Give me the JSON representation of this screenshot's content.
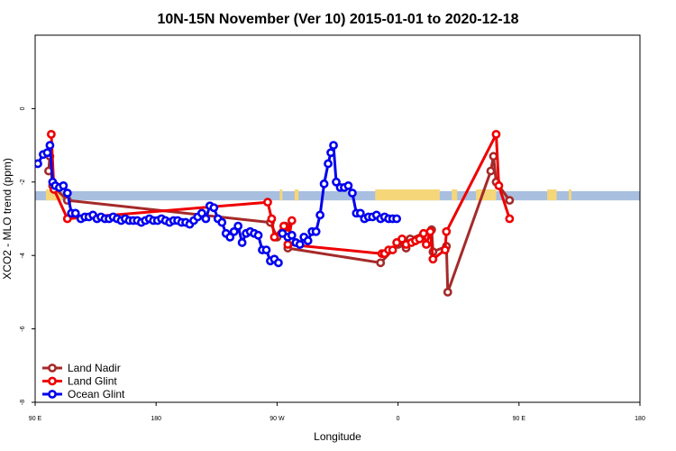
{
  "chart_data": {
    "type": "line",
    "title": "10N-15N November (Ver 10)   2015-01-01 to 2020-12-18",
    "xlabel": "Longitude",
    "ylabel": "XCO2 - MLO trend (ppm)",
    "xlim": [
      90,
      450
    ],
    "ylim": [
      -8,
      2
    ],
    "x_ticks": [
      {
        "value": 90,
        "label": "90 E"
      },
      {
        "value": 180,
        "label": "180"
      },
      {
        "value": 270,
        "label": "90 W"
      },
      {
        "value": 360,
        "label": "0"
      },
      {
        "value": 450,
        "label": "90 E"
      },
      {
        "value": 540,
        "label": "180"
      }
    ],
    "y_ticks": [
      {
        "value": 0,
        "label": "0"
      },
      {
        "value": -2,
        "label": "-2"
      },
      {
        "value": -4,
        "label": "-4"
      },
      {
        "value": -6,
        "label": "-6"
      },
      {
        "value": -8,
        "label": "-8"
      }
    ],
    "legend_position": "bottom-left",
    "land_strip": {
      "y_range": [
        -2.5,
        -2.25
      ],
      "ocean_color": "#a8bfe0",
      "land_color": "#f5d77a",
      "land_segments": [
        [
          98,
          110
        ],
        [
          272,
          274
        ],
        [
          283,
          286
        ],
        [
          343,
          391
        ],
        [
          400,
          404
        ],
        [
          418,
          433
        ],
        [
          471,
          478
        ],
        [
          487,
          489
        ]
      ]
    },
    "series": [
      {
        "name": "Land Nadir",
        "color": "#a52a2a",
        "points": [
          [
            100,
            -1.7
          ],
          [
            101,
            -1.3
          ],
          [
            103,
            -2.1
          ],
          [
            114,
            -2.5
          ],
          [
            265,
            -3.1
          ],
          [
            270,
            -3.5
          ],
          [
            276,
            -3.2
          ],
          [
            278,
            -3.8
          ],
          [
            347,
            -4.2
          ],
          [
            360,
            -3.7
          ],
          [
            366,
            -3.8
          ],
          [
            369,
            -3.55
          ],
          [
            385,
            -3.3
          ],
          [
            386,
            -3.9
          ],
          [
            396,
            -3.75
          ],
          [
            397,
            -5.0
          ],
          [
            429,
            -1.7
          ],
          [
            431,
            -1.3
          ],
          [
            433,
            -2.0
          ],
          [
            443,
            -2.5
          ]
        ]
      },
      {
        "name": "Land Glint",
        "color": "#ee0000",
        "points": [
          [
            102,
            -0.7
          ],
          [
            104,
            -2.2
          ],
          [
            114,
            -3.0
          ],
          [
            263,
            -2.55
          ],
          [
            266,
            -3.0
          ],
          [
            268,
            -3.5
          ],
          [
            275,
            -3.2
          ],
          [
            277,
            -3.4
          ],
          [
            281,
            -3.05
          ],
          [
            278,
            -3.7
          ],
          [
            348,
            -3.95
          ],
          [
            350,
            -3.95
          ],
          [
            353,
            -3.85
          ],
          [
            356,
            -3.85
          ],
          [
            359,
            -3.65
          ],
          [
            363,
            -3.55
          ],
          [
            366,
            -3.7
          ],
          [
            370,
            -3.65
          ],
          [
            373,
            -3.6
          ],
          [
            376,
            -3.55
          ],
          [
            379,
            -3.4
          ],
          [
            381,
            -3.7
          ],
          [
            384,
            -3.35
          ],
          [
            386,
            -4.1
          ],
          [
            395,
            -3.85
          ],
          [
            396,
            -3.35
          ],
          [
            433,
            -0.7
          ],
          [
            435,
            -2.1
          ],
          [
            443,
            -3.0
          ]
        ]
      },
      {
        "name": "Ocean Glint",
        "color": "#0000ee",
        "points": [
          [
            92,
            -1.5
          ],
          [
            96,
            -1.25
          ],
          [
            99,
            -1.2
          ],
          [
            101,
            -1.0
          ],
          [
            103,
            -2.0
          ],
          [
            105,
            -2.1
          ],
          [
            108,
            -2.15
          ],
          [
            111,
            -2.1
          ],
          [
            114,
            -2.3
          ],
          [
            117,
            -2.85
          ],
          [
            120,
            -2.85
          ],
          [
            124,
            -3.0
          ],
          [
            127,
            -2.95
          ],
          [
            130,
            -2.95
          ],
          [
            133,
            -2.9
          ],
          [
            136,
            -3.0
          ],
          [
            139,
            -2.95
          ],
          [
            142,
            -3.0
          ],
          [
            145,
            -3.0
          ],
          [
            148,
            -2.95
          ],
          [
            151,
            -3.0
          ],
          [
            154,
            -3.05
          ],
          [
            157,
            -3.0
          ],
          [
            160,
            -3.05
          ],
          [
            163,
            -3.05
          ],
          [
            166,
            -3.05
          ],
          [
            169,
            -3.1
          ],
          [
            172,
            -3.05
          ],
          [
            175,
            -3.0
          ],
          [
            178,
            -3.05
          ],
          [
            181,
            -3.05
          ],
          [
            184,
            -3.0
          ],
          [
            187,
            -3.05
          ],
          [
            190,
            -3.1
          ],
          [
            193,
            -3.05
          ],
          [
            196,
            -3.05
          ],
          [
            199,
            -3.1
          ],
          [
            202,
            -3.1
          ],
          [
            205,
            -3.15
          ],
          [
            208,
            -3.05
          ],
          [
            211,
            -2.95
          ],
          [
            214,
            -2.85
          ],
          [
            217,
            -3.0
          ],
          [
            220,
            -2.65
          ],
          [
            223,
            -2.7
          ],
          [
            226,
            -3.0
          ],
          [
            229,
            -3.1
          ],
          [
            232,
            -3.4
          ],
          [
            235,
            -3.5
          ],
          [
            238,
            -3.35
          ],
          [
            241,
            -3.2
          ],
          [
            244,
            -3.65
          ],
          [
            247,
            -3.4
          ],
          [
            250,
            -3.35
          ],
          [
            253,
            -3.4
          ],
          [
            256,
            -3.45
          ],
          [
            259,
            -3.85
          ],
          [
            262,
            -3.85
          ],
          [
            265,
            -4.15
          ],
          [
            268,
            -4.1
          ],
          [
            271,
            -4.2
          ]
        ]
      }
    ],
    "series_continuations": [
      {
        "name": "Ocean Glint",
        "points": [
          [
            274,
            -3.4
          ],
          [
            278,
            -3.5
          ],
          [
            281,
            -3.45
          ],
          [
            284,
            -3.65
          ],
          [
            287,
            -3.7
          ],
          [
            290,
            -3.5
          ],
          [
            293,
            -3.6
          ],
          [
            296,
            -3.35
          ],
          [
            299,
            -3.35
          ],
          [
            302,
            -2.9
          ],
          [
            305,
            -2.05
          ],
          [
            308,
            -1.5
          ],
          [
            310,
            -1.2
          ],
          [
            312,
            -1.0
          ],
          [
            314,
            -2.0
          ],
          [
            317,
            -2.15
          ],
          [
            320,
            -2.15
          ],
          [
            323,
            -2.1
          ],
          [
            326,
            -2.3
          ],
          [
            329,
            -2.85
          ],
          [
            332,
            -2.85
          ],
          [
            335,
            -3.0
          ],
          [
            338,
            -2.95
          ],
          [
            341,
            -2.95
          ],
          [
            344,
            -2.9
          ],
          [
            347,
            -3.0
          ],
          [
            350,
            -2.95
          ],
          [
            353,
            -3.0
          ],
          [
            356,
            -3.0
          ],
          [
            359,
            -3.0
          ]
        ]
      }
    ]
  }
}
